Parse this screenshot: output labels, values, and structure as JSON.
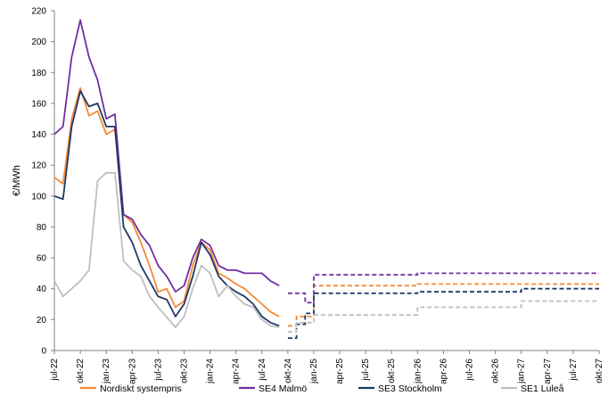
{
  "chart_data": {
    "type": "line",
    "title": "",
    "ylabel": "€/MWh",
    "xlabel": "",
    "ylim": [
      0,
      220
    ],
    "yticks": [
      "0",
      "20",
      "40",
      "60",
      "80",
      "100",
      "120",
      "140",
      "160",
      "180",
      "200",
      "220"
    ],
    "xlim": [
      "2022-07",
      "2027-10"
    ],
    "xticks": [
      "jul-22",
      "okt-22",
      "jan-23",
      "apr-23",
      "jul-23",
      "okt-23",
      "jan-24",
      "apr-24",
      "jul-24",
      "okt-24",
      "jan-25",
      "apr-25",
      "jul-25",
      "okt-25",
      "jan-26",
      "apr-26",
      "jul-26",
      "okt-26",
      "jan-27",
      "apr-27",
      "jul-27",
      "okt-27"
    ],
    "legend_position": "bottom",
    "grid": false,
    "series": [
      {
        "name": "Nordiskt systempris",
        "color": "#F58A35",
        "historical": [
          [
            "2022-07",
            112
          ],
          [
            "2022-08",
            108
          ],
          [
            "2022-09",
            150
          ],
          [
            "2022-10",
            170
          ],
          [
            "2022-11",
            152
          ],
          [
            "2022-12",
            155
          ],
          [
            "2023-01",
            140
          ],
          [
            "2023-02",
            143
          ],
          [
            "2023-03",
            88
          ],
          [
            "2023-04",
            83
          ],
          [
            "2023-05",
            70
          ],
          [
            "2023-06",
            55
          ],
          [
            "2023-07",
            38
          ],
          [
            "2023-08",
            40
          ],
          [
            "2023-09",
            28
          ],
          [
            "2023-10",
            32
          ],
          [
            "2023-11",
            55
          ],
          [
            "2023-12",
            70
          ],
          [
            "2024-01",
            65
          ],
          [
            "2024-02",
            50
          ],
          [
            "2024-03",
            47
          ],
          [
            "2024-04",
            43
          ],
          [
            "2024-05",
            40
          ],
          [
            "2024-06",
            35
          ],
          [
            "2024-07",
            30
          ],
          [
            "2024-08",
            25
          ],
          [
            "2024-09",
            22
          ]
        ],
        "forecast": [
          [
            "2024-10",
            16
          ],
          [
            "2024-11",
            22
          ],
          [
            "2025-01",
            42
          ],
          [
            "2025-10",
            42
          ],
          [
            "2026-01",
            43
          ],
          [
            "2026-10",
            43
          ],
          [
            "2027-01",
            43
          ],
          [
            "2027-10",
            43
          ]
        ]
      },
      {
        "name": "SE4 Malmö",
        "color": "#7030A0",
        "historical": [
          [
            "2022-07",
            140
          ],
          [
            "2022-08",
            145
          ],
          [
            "2022-09",
            190
          ],
          [
            "2022-10",
            214
          ],
          [
            "2022-11",
            190
          ],
          [
            "2022-12",
            175
          ],
          [
            "2023-01",
            150
          ],
          [
            "2023-02",
            153
          ],
          [
            "2023-03",
            88
          ],
          [
            "2023-04",
            85
          ],
          [
            "2023-05",
            75
          ],
          [
            "2023-06",
            68
          ],
          [
            "2023-07",
            55
          ],
          [
            "2023-08",
            48
          ],
          [
            "2023-09",
            38
          ],
          [
            "2023-10",
            42
          ],
          [
            "2023-11",
            60
          ],
          [
            "2023-12",
            72
          ],
          [
            "2024-01",
            68
          ],
          [
            "2024-02",
            55
          ],
          [
            "2024-03",
            52
          ],
          [
            "2024-04",
            52
          ],
          [
            "2024-05",
            50
          ],
          [
            "2024-06",
            50
          ],
          [
            "2024-07",
            50
          ],
          [
            "2024-08",
            45
          ],
          [
            "2024-09",
            42
          ]
        ],
        "forecast": [
          [
            "2024-10",
            37
          ],
          [
            "2024-12",
            31
          ],
          [
            "2025-01",
            49
          ],
          [
            "2025-10",
            49
          ],
          [
            "2026-01",
            50
          ],
          [
            "2026-10",
            50
          ],
          [
            "2027-01",
            50
          ],
          [
            "2027-10",
            50
          ]
        ]
      },
      {
        "name": "SE3 Stockholm",
        "color": "#1F3864",
        "historical": [
          [
            "2022-07",
            100
          ],
          [
            "2022-08",
            98
          ],
          [
            "2022-09",
            145
          ],
          [
            "2022-10",
            168
          ],
          [
            "2022-11",
            158
          ],
          [
            "2022-12",
            160
          ],
          [
            "2023-01",
            145
          ],
          [
            "2023-02",
            145
          ],
          [
            "2023-03",
            80
          ],
          [
            "2023-04",
            70
          ],
          [
            "2023-05",
            55
          ],
          [
            "2023-06",
            45
          ],
          [
            "2023-07",
            35
          ],
          [
            "2023-08",
            33
          ],
          [
            "2023-09",
            22
          ],
          [
            "2023-10",
            30
          ],
          [
            "2023-11",
            48
          ],
          [
            "2023-12",
            70
          ],
          [
            "2024-01",
            62
          ],
          [
            "2024-02",
            48
          ],
          [
            "2024-03",
            42
          ],
          [
            "2024-04",
            38
          ],
          [
            "2024-05",
            35
          ],
          [
            "2024-06",
            30
          ],
          [
            "2024-07",
            22
          ],
          [
            "2024-08",
            18
          ],
          [
            "2024-09",
            16
          ]
        ],
        "forecast": [
          [
            "2024-10",
            8
          ],
          [
            "2024-11",
            17
          ],
          [
            "2024-12",
            24
          ],
          [
            "2025-01",
            37
          ],
          [
            "2025-10",
            37
          ],
          [
            "2026-01",
            38
          ],
          [
            "2026-10",
            38
          ],
          [
            "2027-01",
            40
          ],
          [
            "2027-10",
            40
          ]
        ]
      },
      {
        "name": "SE1 Luleå",
        "color": "#BFBFBF",
        "historical": [
          [
            "2022-07",
            45
          ],
          [
            "2022-08",
            35
          ],
          [
            "2022-09",
            40
          ],
          [
            "2022-10",
            45
          ],
          [
            "2022-11",
            52
          ],
          [
            "2022-12",
            110
          ],
          [
            "2023-01",
            115
          ],
          [
            "2023-02",
            115
          ],
          [
            "2023-03",
            58
          ],
          [
            "2023-04",
            52
          ],
          [
            "2023-05",
            48
          ],
          [
            "2023-06",
            35
          ],
          [
            "2023-07",
            28
          ],
          [
            "2023-09",
            15
          ],
          [
            "2023-10",
            22
          ],
          [
            "2023-11",
            40
          ],
          [
            "2023-12",
            55
          ],
          [
            "2024-01",
            50
          ],
          [
            "2024-02",
            35
          ],
          [
            "2024-03",
            42
          ],
          [
            "2024-04",
            35
          ],
          [
            "2024-05",
            30
          ],
          [
            "2024-06",
            28
          ],
          [
            "2024-07",
            20
          ],
          [
            "2024-08",
            16
          ],
          [
            "2024-09",
            15
          ]
        ],
        "forecast": [
          [
            "2024-10",
            12
          ],
          [
            "2024-11",
            18
          ],
          [
            "2025-01",
            23
          ],
          [
            "2025-10",
            23
          ],
          [
            "2026-01",
            28
          ],
          [
            "2026-10",
            28
          ],
          [
            "2027-01",
            32
          ],
          [
            "2027-10",
            32
          ]
        ]
      }
    ]
  }
}
